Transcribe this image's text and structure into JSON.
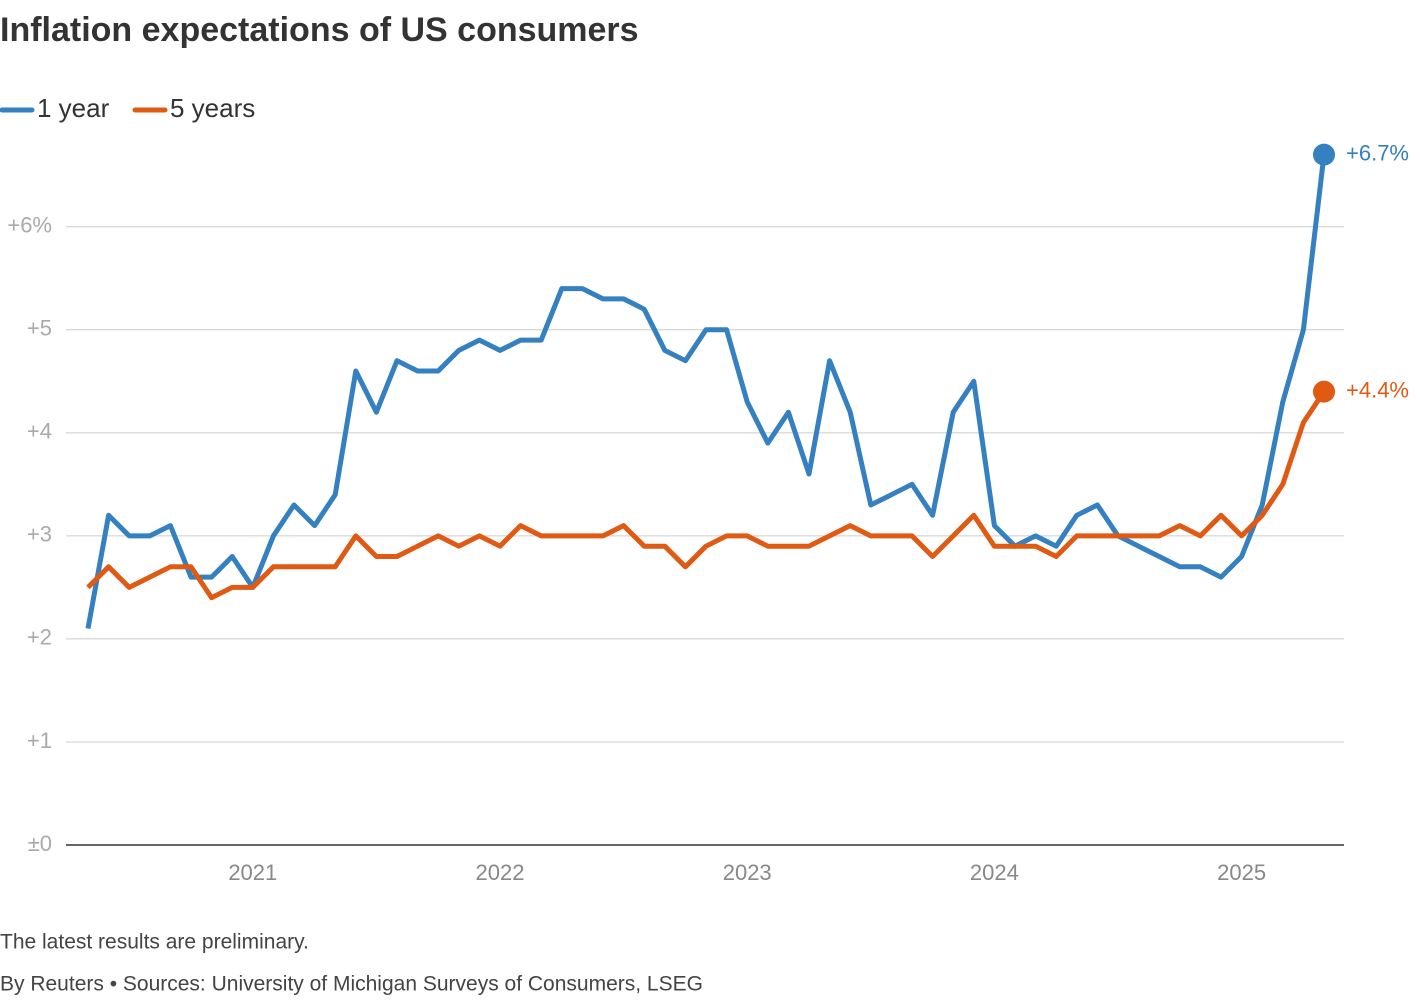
{
  "chart_data": {
    "type": "line",
    "title": "Inflation expectations of US consumers",
    "note": "The latest results are preliminary.",
    "source": "By Reuters • Sources: University of Michigan Surveys of Consumers, LSEG",
    "categories": [
      null,
      null,
      null,
      null,
      null,
      null,
      null,
      null,
      "2021",
      null,
      null,
      null,
      null,
      null,
      null,
      null,
      null,
      null,
      null,
      null,
      "2022",
      null,
      null,
      null,
      null,
      null,
      null,
      null,
      null,
      null,
      null,
      null,
      "2023",
      null,
      null,
      null,
      null,
      null,
      null,
      null,
      null,
      null,
      null,
      null,
      "2024",
      null,
      null,
      null,
      null,
      null,
      null,
      null,
      null,
      null,
      null,
      null,
      "2025",
      null,
      null,
      null,
      null
    ],
    "series": [
      {
        "name": "1 year",
        "color": "#3480c0",
        "end_label": "+6.7%",
        "values": [
          2.1,
          3.2,
          3.0,
          3.0,
          3.1,
          2.6,
          2.6,
          2.8,
          2.5,
          3.0,
          3.3,
          3.1,
          3.4,
          4.6,
          4.2,
          4.7,
          4.6,
          4.6,
          4.8,
          4.9,
          4.8,
          4.9,
          4.9,
          5.4,
          5.4,
          5.3,
          5.3,
          5.2,
          4.8,
          4.7,
          5.0,
          5.0,
          4.3,
          3.9,
          4.2,
          3.6,
          4.7,
          4.2,
          3.3,
          3.4,
          3.5,
          3.2,
          4.2,
          4.5,
          3.1,
          2.9,
          3.0,
          2.9,
          3.2,
          3.3,
          3.0,
          2.9,
          2.8,
          2.7,
          2.7,
          2.6,
          2.8,
          3.3,
          4.3,
          5.0,
          6.7
        ]
      },
      {
        "name": "5 years",
        "color": "#e05a14",
        "end_label": "+4.4%",
        "values": [
          2.5,
          2.7,
          2.5,
          2.6,
          2.7,
          2.7,
          2.4,
          2.5,
          2.5,
          2.7,
          2.7,
          2.7,
          2.7,
          3.0,
          2.8,
          2.8,
          2.9,
          3.0,
          2.9,
          3.0,
          2.9,
          3.1,
          3.0,
          3.0,
          3.0,
          3.0,
          3.1,
          2.9,
          2.9,
          2.7,
          2.9,
          3.0,
          3.0,
          2.9,
          2.9,
          2.9,
          3.0,
          3.1,
          3.0,
          3.0,
          3.0,
          2.8,
          3.0,
          3.2,
          2.9,
          2.9,
          2.9,
          2.8,
          3.0,
          3.0,
          3.0,
          3.0,
          3.0,
          3.1,
          3.0,
          3.2,
          3.0,
          3.2,
          3.5,
          4.1,
          4.4
        ]
      }
    ],
    "ylim": [
      0,
      6.9
    ],
    "yticks": [
      {
        "value": 0,
        "label": "±0"
      },
      {
        "value": 1,
        "label": "+1"
      },
      {
        "value": 2,
        "label": "+2"
      },
      {
        "value": 3,
        "label": "+3"
      },
      {
        "value": 4,
        "label": "+4"
      },
      {
        "value": 5,
        "label": "+5"
      },
      {
        "value": 6,
        "label": "+6%"
      }
    ],
    "grid": true,
    "legend": "top-left"
  }
}
